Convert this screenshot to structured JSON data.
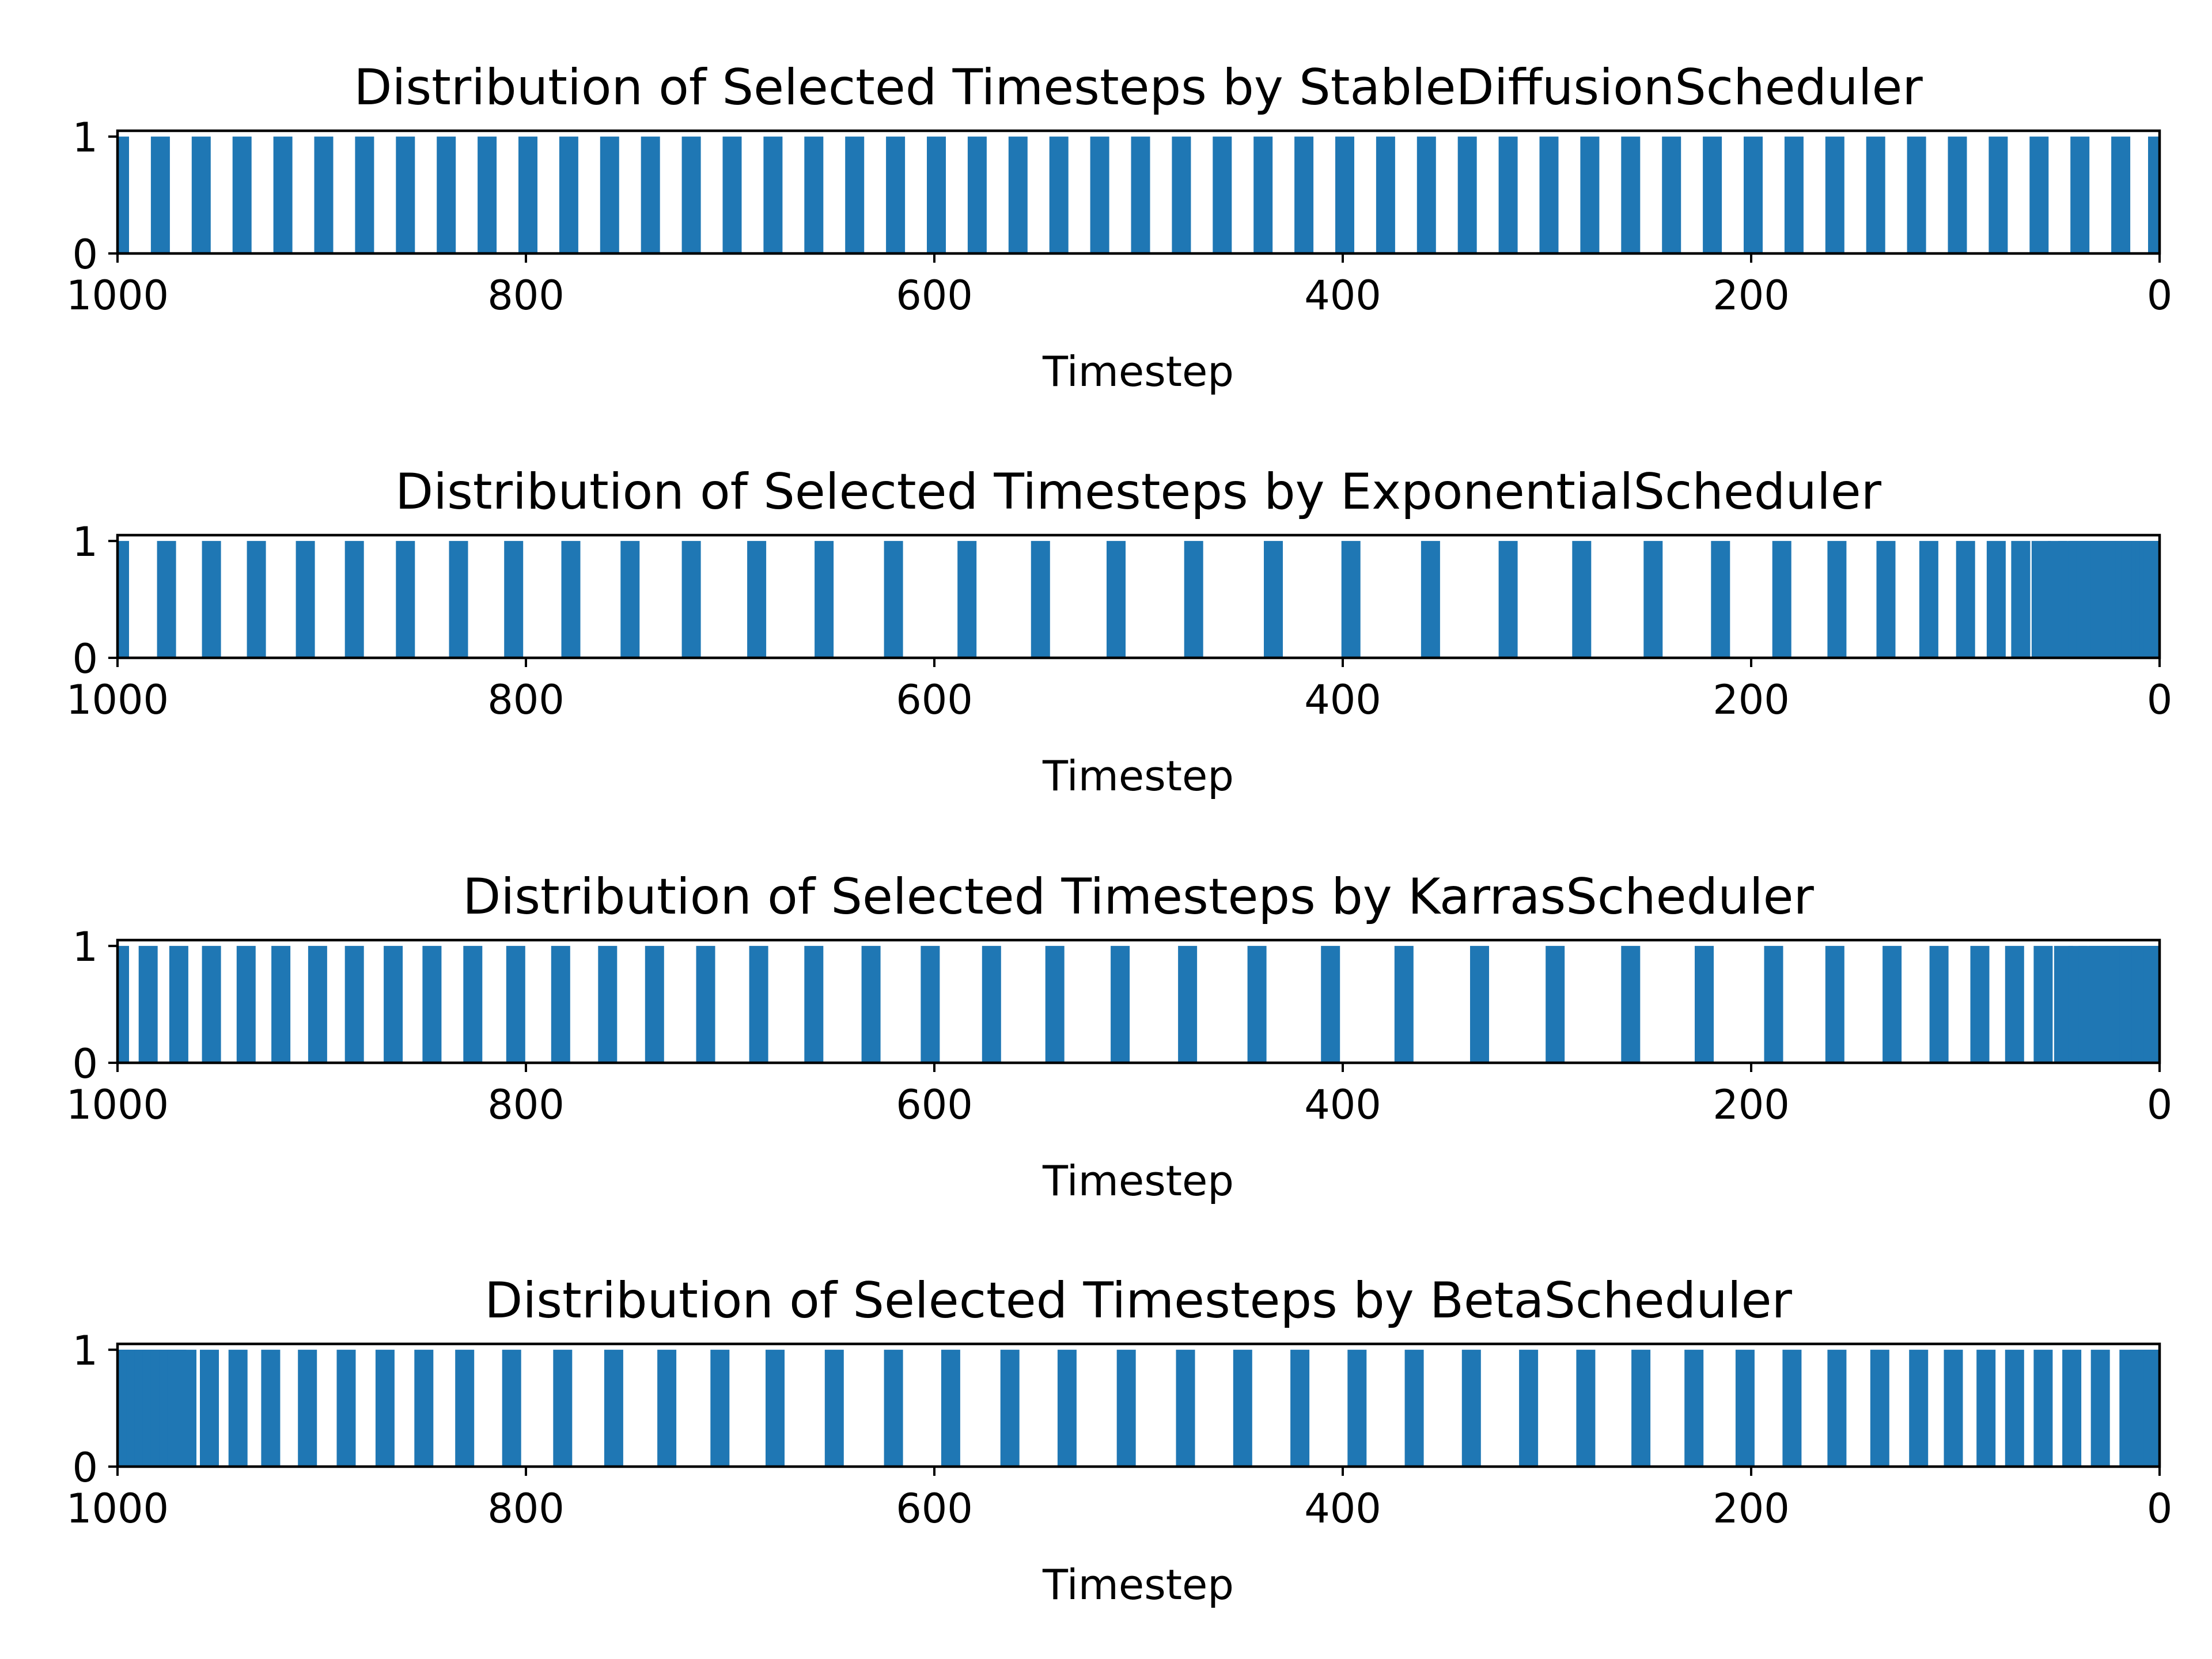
{
  "chart_data": [
    {
      "type": "bar",
      "title": "Distribution of Selected Timesteps by StableDiffusionScheduler",
      "xlabel": "Timestep",
      "ylabel": "",
      "xlim": [
        1000,
        0
      ],
      "ylim": [
        0,
        1.05
      ],
      "xticks": [
        "1000",
        "800",
        "600",
        "400",
        "200",
        "0"
      ],
      "yticks": [
        "0",
        "1"
      ],
      "color": "#1f77b4",
      "values": [
        999,
        979,
        959,
        939,
        919,
        899,
        879,
        859,
        839,
        819,
        799,
        779,
        759,
        739,
        719,
        699,
        679,
        659,
        639,
        619,
        599,
        579,
        559,
        539,
        519,
        499,
        479,
        459,
        439,
        419,
        399,
        379,
        359,
        339,
        319,
        299,
        279,
        259,
        239,
        219,
        199,
        179,
        159,
        139,
        119,
        99,
        79,
        59,
        39,
        19,
        1
      ]
    },
    {
      "type": "bar",
      "title": "Distribution of Selected Timesteps by ExponentialScheduler",
      "xlabel": "Timestep",
      "ylabel": "",
      "xlim": [
        1000,
        0
      ],
      "ylim": [
        0,
        1.05
      ],
      "xticks": [
        "1000",
        "800",
        "600",
        "400",
        "200",
        "0"
      ],
      "yticks": [
        "0",
        "1"
      ],
      "color": "#1f77b4",
      "values": [
        999,
        976,
        954,
        932,
        908,
        884,
        859,
        833,
        806,
        778,
        749,
        719,
        687,
        654,
        620,
        584,
        548,
        511,
        473,
        434,
        396,
        357,
        319,
        283,
        248,
        215,
        185,
        158,
        134,
        113,
        95,
        80,
        68,
        58,
        50,
        45,
        40,
        36,
        32,
        29,
        26,
        23,
        20,
        17,
        14,
        12,
        9,
        7,
        5,
        3,
        1
      ]
    },
    {
      "type": "bar",
      "title": "Distribution of Selected Timesteps by KarrasScheduler",
      "xlabel": "Timestep",
      "ylabel": "",
      "xlim": [
        1000,
        0
      ],
      "ylim": [
        0,
        1.05
      ],
      "xticks": [
        "1000",
        "800",
        "600",
        "400",
        "200",
        "0"
      ],
      "yticks": [
        "0",
        "1"
      ],
      "color": "#1f77b4",
      "values": [
        999,
        985,
        970,
        954,
        937,
        920,
        902,
        884,
        865,
        846,
        826,
        805,
        783,
        760,
        737,
        712,
        686,
        659,
        631,
        602,
        572,
        541,
        509,
        476,
        442,
        406,
        370,
        333,
        296,
        259,
        223,
        189,
        159,
        131,
        108,
        88,
        71,
        57,
        47,
        40,
        35,
        30,
        26,
        22,
        18,
        15,
        12,
        9,
        6,
        3,
        1
      ]
    },
    {
      "type": "bar",
      "title": "Distribution of Selected Timesteps by BetaScheduler",
      "xlabel": "Timestep",
      "ylabel": "",
      "xlim": [
        1000,
        0
      ],
      "ylim": [
        0,
        1.05
      ],
      "xticks": [
        "1000",
        "800",
        "600",
        "400",
        "200",
        "0"
      ],
      "yticks": [
        "0",
        "1"
      ],
      "color": "#1f77b4",
      "values": [
        999,
        995,
        991,
        987,
        983,
        979,
        975,
        971,
        966,
        955,
        941,
        925,
        907,
        888,
        869,
        850,
        830,
        807,
        782,
        757,
        731,
        705,
        678,
        649,
        620,
        592,
        563,
        535,
        506,
        477,
        449,
        421,
        393,
        365,
        337,
        309,
        281,
        254,
        228,
        203,
        180,
        158,
        137,
        118,
        101,
        85,
        71,
        57,
        43,
        29,
        15,
        10,
        6,
        3,
        1
      ]
    }
  ]
}
